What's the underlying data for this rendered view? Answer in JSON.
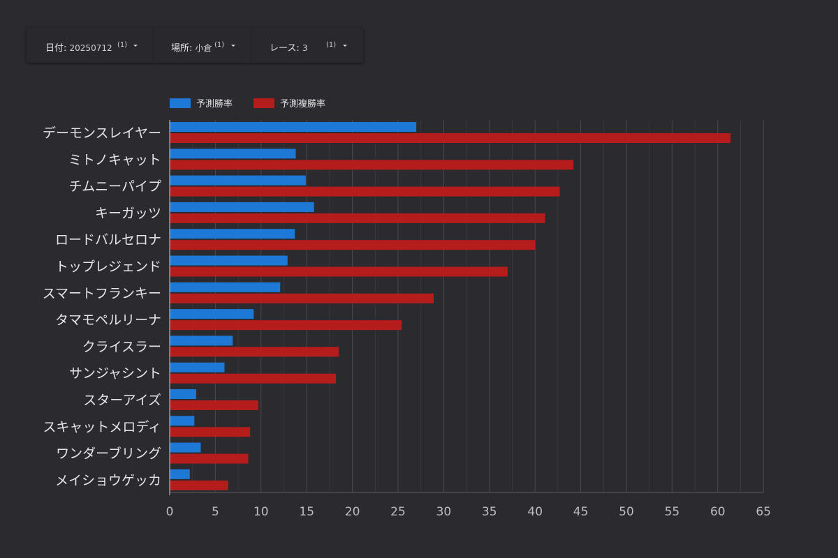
{
  "filters": [
    {
      "label": "日付",
      "value": "20250712",
      "count": "(1)"
    },
    {
      "label": "場所",
      "value": "小倉",
      "count": "(1)"
    },
    {
      "label": "レース",
      "value": "3",
      "count": "(1)"
    }
  ],
  "colors": {
    "background": "#2b2a2f",
    "series_win": "#1e79d6",
    "series_place": "#b51c1c",
    "grid": "#4a4950"
  },
  "chart_data": {
    "type": "bar",
    "orientation": "horizontal",
    "categories": [
      "デーモンスレイヤー",
      "ミトノキャット",
      "チムニーパイプ",
      "キーガッツ",
      "ロードバルセロナ",
      "トップレジェンド",
      "スマートフランキー",
      "タマモペルリーナ",
      "クライスラー",
      "サンジャシント",
      "スターアイズ",
      "スキャットメロディ",
      "ワンダーブリング",
      "メイショウゲッカ"
    ],
    "series": [
      {
        "name": "予測勝率",
        "color": "#1e79d6",
        "values": [
          27.0,
          13.8,
          14.9,
          15.8,
          13.7,
          12.9,
          12.1,
          9.2,
          6.9,
          6.0,
          2.9,
          2.7,
          3.4,
          2.2
        ]
      },
      {
        "name": "予測複勝率",
        "color": "#b51c1c",
        "values": [
          61.4,
          44.2,
          42.7,
          41.1,
          40.0,
          37.0,
          28.9,
          25.4,
          18.5,
          18.2,
          9.7,
          8.8,
          8.6,
          6.4
        ]
      }
    ],
    "ticks": [
      0,
      5,
      10,
      15,
      20,
      25,
      30,
      35,
      40,
      45,
      50,
      55,
      60,
      65
    ],
    "xlim": [
      0,
      65
    ],
    "grid": true,
    "legend_position": "top-left"
  }
}
